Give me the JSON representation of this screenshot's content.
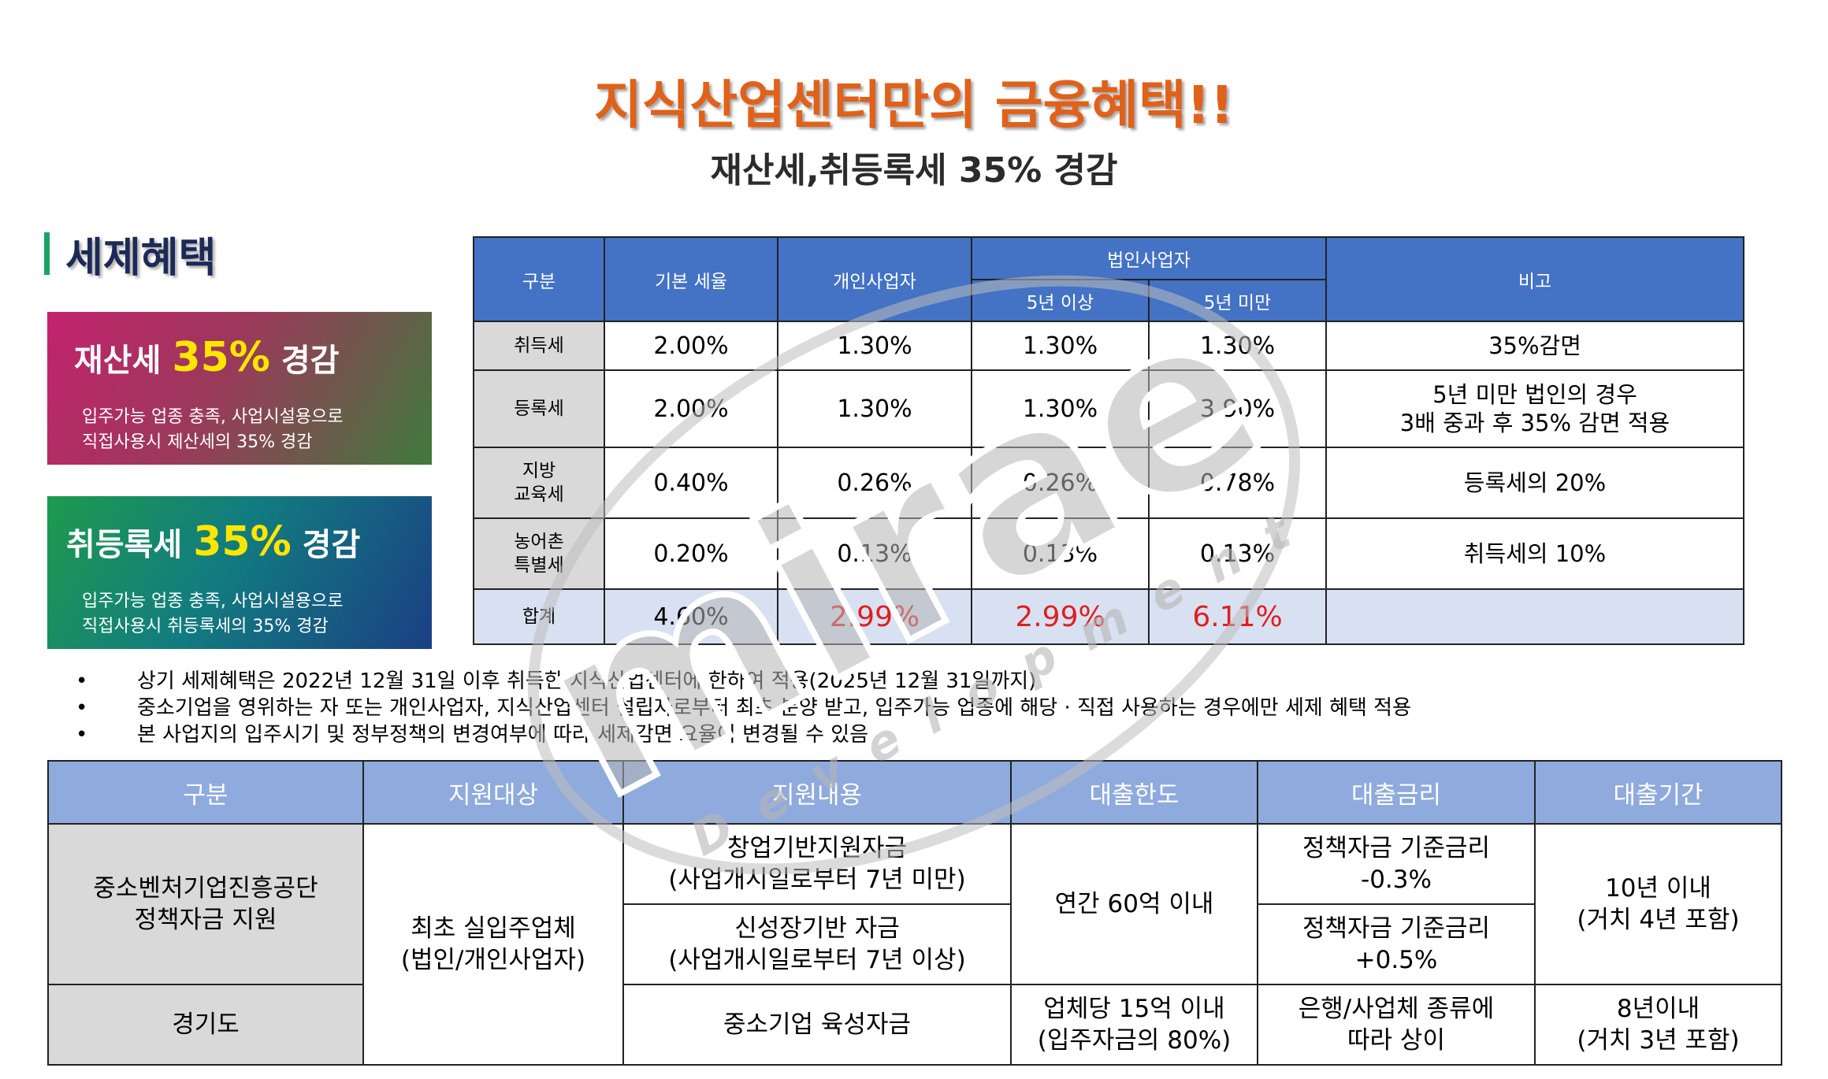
{
  "header": {
    "title": "지식산업센터만의 금융혜택!!",
    "subtitle": "재산세,취등록세 35% 경감"
  },
  "section": {
    "title": "세제혜택"
  },
  "cards": [
    {
      "prefix": "재산세",
      "pct": "35%",
      "suffix": "경감",
      "desc1": "입주가능 업종 충족, 사업시설용으로",
      "desc2": "직접사용시 제산세의 35% 경감"
    },
    {
      "prefix": "취등록세",
      "pct": "35%",
      "suffix": "경감",
      "desc1": "입주가능 업종 충족, 사업시설용으로",
      "desc2": "직접사용시 취등록세의 35% 경감"
    }
  ],
  "tax_table": {
    "headers": {
      "category": "구분",
      "base_rate": "기본 세율",
      "individual": "개인사업자",
      "corporate": "법인사업자",
      "over5": "5년 이상",
      "under5": "5년 미만",
      "remarks": "비고"
    },
    "rows": [
      {
        "label": "취득세",
        "base": "2.00%",
        "ind": "1.30%",
        "over5": "1.30%",
        "under5": "1.30%",
        "note1": "35%감면",
        "note2": ""
      },
      {
        "label": "등록세",
        "base": "2.00%",
        "ind": "1.30%",
        "over5": "1.30%",
        "under5": "3.90%",
        "note1": "5년 미만 법인의 경우",
        "note2": "3배 중과 후 35% 감면 적용"
      },
      {
        "label": "지방",
        "label2": "교육세",
        "base": "0.40%",
        "ind": "0.26%",
        "over5": "0.26%",
        "under5": "0.78%",
        "note1": "등록세의 20%",
        "note2": ""
      },
      {
        "label": "농어촌",
        "label2": "특별세",
        "base": "0.20%",
        "ind": "0.13%",
        "over5": "0.13%",
        "under5": "0.13%",
        "note1": "취득세의 10%",
        "note2": ""
      }
    ],
    "total": {
      "label": "합계",
      "base": "4.60%",
      "ind": "2.99%",
      "over5": "2.99%",
      "under5": "6.11%",
      "note": ""
    }
  },
  "notes": {
    "bullet": "•",
    "items": [
      "상기 세제혜택은 2022년 12월 31일 이후 취득한 지식산업센터에 한하여 적용(2025년 12월 31일까지)",
      "중소기업을 영위하는 자 또는 개인사업자, 지식산업센터 설립자로부터 최초 분양 받고, 입주가능 업종에 해당 · 직접 사용하는 경우에만 세제 혜택 적용",
      "본 사업지의 입주시기 및 정부정책의 변경여부에 따라 세제감면 요율이 변경될 수 있음"
    ]
  },
  "loan_table": {
    "headers": [
      "구분",
      "지원대상",
      "지원내용",
      "대출한도",
      "대출금리",
      "대출기간"
    ],
    "org1": {
      "line1": "중소벤처기업진흥공단",
      "line2": "정책자금 지원"
    },
    "org2": "경기도",
    "target": {
      "line1": "최초 실입주업체",
      "line2": "(법인/개인사업자)"
    },
    "content1": {
      "line1": "창업기반지원자금",
      "line2": "(사업개시일로부터 7년 미만)"
    },
    "content2": {
      "line1": "신성장기반 자금",
      "line2": "(사업개시일로부터 7년 이상)"
    },
    "content3": "중소기업 육성자금",
    "limit1": "연간 60억 이내",
    "limit2": {
      "line1": "업체당 15억 이내",
      "line2": "(입주자금의 80%)"
    },
    "rate1": {
      "line1": "정책자금 기준금리",
      "line2": "-0.3%"
    },
    "rate2": {
      "line1": "정책자금 기준금리",
      "line2": "+0.5%"
    },
    "rate3": {
      "line1": "은행/사업체 종류에",
      "line2": "따라 상이"
    },
    "period1": {
      "line1": "10년 이내",
      "line2": "(거치 4년 포함)"
    },
    "period2": {
      "line1": "8년이내",
      "line2": "(거치 3년 포함)"
    }
  },
  "watermark": {
    "brand": "mirae",
    "sub": "Development"
  },
  "colors": {
    "title": "#e0611a",
    "table_header": "#4472c4",
    "loan_header": "#8faadc",
    "highlight_red": "#e01e1e"
  }
}
